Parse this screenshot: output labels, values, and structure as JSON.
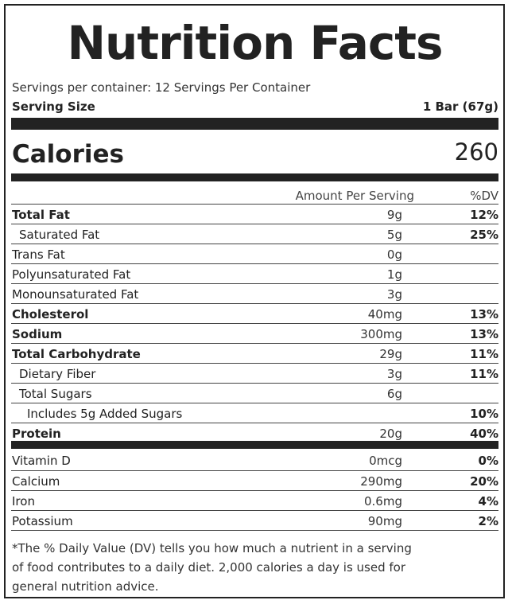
{
  "title": "Nutrition Facts",
  "servings_per_container": "Servings per container: 12 Servings Per Container",
  "serving_size": {
    "label": "Serving Size",
    "value": "1 Bar (67g)"
  },
  "calories": {
    "label": "Calories",
    "value": "260"
  },
  "columns": {
    "amount": "Amount Per Serving",
    "dv": "%DV"
  },
  "nutrients": [
    {
      "name": "Total Fat",
      "amount": "9g",
      "dv": "12%",
      "bold": true,
      "indent": 0
    },
    {
      "name": "Saturated Fat",
      "amount": "5g",
      "dv": "25%",
      "bold": false,
      "indent": 1
    },
    {
      "name": "Trans Fat",
      "amount": "0g",
      "dv": "",
      "bold": false,
      "indent": 0
    },
    {
      "name": "Polyunsaturated Fat",
      "amount": "1g",
      "dv": "",
      "bold": false,
      "indent": 0
    },
    {
      "name": "Monounsaturated Fat",
      "amount": "3g",
      "dv": "",
      "bold": false,
      "indent": 0
    },
    {
      "name": "Cholesterol",
      "amount": "40mg",
      "dv": "13%",
      "bold": true,
      "indent": 0
    },
    {
      "name": "Sodium",
      "amount": "300mg",
      "dv": "13%",
      "bold": true,
      "indent": 0
    },
    {
      "name": "Total Carbohydrate",
      "amount": "29g",
      "dv": "11%",
      "bold": true,
      "indent": 0
    },
    {
      "name": "Dietary Fiber",
      "amount": "3g",
      "dv": "11%",
      "bold": false,
      "indent": 1
    },
    {
      "name": "Total Sugars",
      "amount": "6g",
      "dv": "",
      "bold": false,
      "indent": 1
    },
    {
      "name": "Includes 5g Added Sugars",
      "amount": "",
      "dv": "10%",
      "bold": false,
      "indent": 2
    },
    {
      "name": "Protein",
      "amount": "20g",
      "dv": "40%",
      "bold": true,
      "indent": 0
    }
  ],
  "vitamins": [
    {
      "name": "Vitamin D",
      "amount": "0mcg",
      "dv": "0%"
    },
    {
      "name": "Calcium",
      "amount": "290mg",
      "dv": "20%"
    },
    {
      "name": "Iron",
      "amount": "0.6mg",
      "dv": "4%"
    },
    {
      "name": "Potassium",
      "amount": "90mg",
      "dv": "2%"
    }
  ],
  "footnote": "*The % Daily Value (DV) tells you how much a nutrient in a serving of food contributes to a daily diet. 2,000 calories a day is used for general nutrition advice.",
  "colors": {
    "ink": "#222222",
    "background": "#ffffff"
  }
}
